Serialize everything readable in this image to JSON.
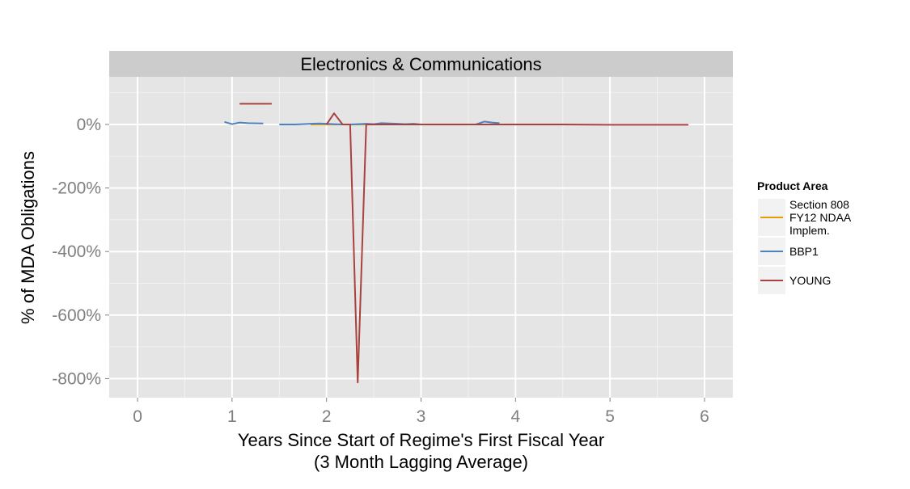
{
  "chart_data": {
    "type": "line",
    "facet_title": "Electronics & Communications",
    "xlabel_line1": "Years Since Start of Regime's First Fiscal Year",
    "xlabel_line2": "(3 Month Lagging Average)",
    "ylabel": "% of MDA Obligations",
    "xlim": [
      -0.3,
      6.3
    ],
    "ylim": [
      -860,
      150
    ],
    "x_ticks": [
      0,
      1,
      2,
      3,
      4,
      5,
      6
    ],
    "x_tick_labels": [
      "0",
      "1",
      "2",
      "3",
      "4",
      "5",
      "6"
    ],
    "y_ticks": [
      0,
      -200,
      -400,
      -600,
      -800
    ],
    "y_tick_labels": [
      "0%",
      "-200%",
      "-400%",
      "-600%",
      "-800%"
    ],
    "grid": true,
    "legend": {
      "title": "Product Area",
      "position": "right",
      "entries": [
        {
          "label_lines": [
            "Section 808",
            "FY12 NDAA",
            "Implem."
          ]
        },
        {
          "label_lines": [
            "BBP1"
          ]
        },
        {
          "label_lines": [
            "YOUNG"
          ]
        }
      ]
    },
    "series": [
      {
        "name": "Section 808 FY12 NDAA Implem.",
        "color": "#E69F00",
        "segments": [
          [
            [
              1.83,
              0
            ],
            [
              2.0,
              0
            ],
            [
              2.25,
              0
            ],
            [
              2.5,
              0
            ],
            [
              2.83,
              0
            ]
          ]
        ]
      },
      {
        "name": "BBP1",
        "color": "#4F81BD",
        "segments": [
          [
            [
              0.92,
              8
            ],
            [
              1.0,
              1
            ],
            [
              1.08,
              6
            ],
            [
              1.17,
              4
            ],
            [
              1.33,
              3
            ]
          ],
          [
            [
              1.5,
              0
            ],
            [
              1.67,
              0
            ],
            [
              1.83,
              2
            ],
            [
              1.92,
              3
            ],
            [
              2.0,
              2
            ],
            [
              2.08,
              1
            ],
            [
              2.17,
              0
            ],
            [
              2.25,
              0
            ],
            [
              2.33,
              1
            ],
            [
              2.42,
              2
            ],
            [
              2.5,
              1
            ],
            [
              2.58,
              4
            ],
            [
              2.67,
              3
            ],
            [
              2.75,
              2
            ],
            [
              2.83,
              1
            ],
            [
              2.92,
              2
            ],
            [
              3.0,
              0
            ],
            [
              3.25,
              0
            ],
            [
              3.5,
              0
            ],
            [
              3.58,
              0
            ],
            [
              3.67,
              9
            ],
            [
              3.75,
              6
            ],
            [
              3.83,
              4
            ]
          ]
        ]
      },
      {
        "name": "YOUNG",
        "color": "#A9413F",
        "segments": [
          [
            [
              1.08,
              65
            ],
            [
              1.42,
              65
            ]
          ],
          [
            [
              2.0,
              0
            ],
            [
              2.08,
              35
            ],
            [
              2.17,
              0
            ],
            [
              2.25,
              0
            ],
            [
              2.33,
              -812
            ],
            [
              2.42,
              0
            ],
            [
              2.5,
              0
            ],
            [
              2.75,
              0
            ],
            [
              3.0,
              0
            ],
            [
              3.5,
              0
            ],
            [
              4.0,
              0
            ],
            [
              4.5,
              0
            ],
            [
              5.0,
              -1
            ],
            [
              5.5,
              -1
            ],
            [
              5.83,
              -1
            ]
          ]
        ]
      }
    ]
  }
}
